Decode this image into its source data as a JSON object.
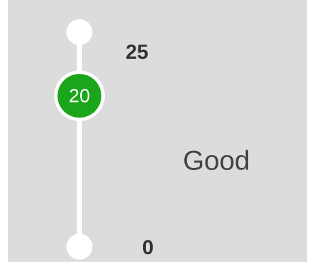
{
  "slider": {
    "min": 0,
    "max": 25,
    "value": 20,
    "status": "Good"
  }
}
